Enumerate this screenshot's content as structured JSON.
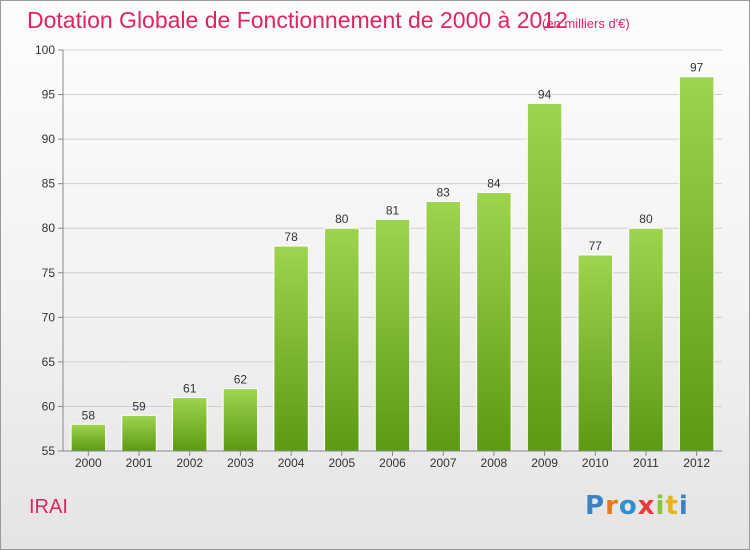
{
  "header": {
    "title": "Dotation Globale de Fonctionnement de 2000 à 2012",
    "unit": "(en milliers d'€)"
  },
  "footer": {
    "commune": "IRAI",
    "logo": "Proxiti"
  },
  "colors": {
    "title": "#e0245e",
    "bar_top": "#9ed44e",
    "bar_bottom": "#5c9a14",
    "logo_letters": [
      "#3b84c4",
      "#e87a1c",
      "#2f8fcf",
      "#e83c3c",
      "#8cc43c",
      "#e8b41c",
      "#3b84c4"
    ]
  },
  "chart_data": {
    "type": "bar",
    "categories": [
      "2000",
      "2001",
      "2002",
      "2003",
      "2004",
      "2005",
      "2006",
      "2007",
      "2008",
      "2009",
      "2010",
      "2011",
      "2012"
    ],
    "values": [
      58,
      59,
      61,
      62,
      78,
      80,
      81,
      83,
      84,
      94,
      77,
      80,
      97
    ],
    "ylim": [
      55,
      100
    ],
    "yticks": [
      55,
      60,
      65,
      70,
      75,
      80,
      85,
      90,
      95,
      100
    ],
    "grid": true,
    "data_labels": true
  }
}
